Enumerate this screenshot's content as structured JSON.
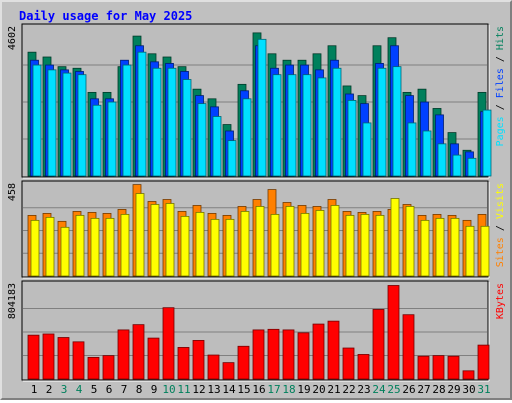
{
  "title": "Daily usage for May 2025",
  "colors": {
    "title": "#0000ff",
    "hits": "#00805c",
    "files": "#0040ff",
    "pages": "#00e0ff",
    "visits": "#ffff00",
    "sites": "#ff8000",
    "kbytes": "#ff0000",
    "panel_bg": "#bdbdbd",
    "frame_bg": "#c0c0c0",
    "weekend_label": "#00805c",
    "weekday_label": "#000000"
  },
  "chart_data": [
    {
      "type": "bar",
      "panel": "traffic",
      "ylabel_parts": [
        "Pages",
        "Files",
        "Hits"
      ],
      "ymax_label": "4602",
      "ylim": [
        0,
        4602
      ],
      "grid": true,
      "categories": [
        "1",
        "2",
        "3",
        "4",
        "5",
        "6",
        "7",
        "8",
        "9",
        "10",
        "11",
        "12",
        "13",
        "14",
        "15",
        "16",
        "17",
        "18",
        "19",
        "20",
        "21",
        "22",
        "23",
        "24",
        "25",
        "26",
        "27",
        "28",
        "29",
        "30",
        "31"
      ],
      "weekend_days": [
        "3",
        "4",
        "10",
        "11",
        "17",
        "18",
        "24",
        "25",
        "31"
      ],
      "series": [
        {
          "name": "Hits",
          "values": [
            3850,
            3700,
            3400,
            3350,
            2600,
            2600,
            3400,
            4350,
            3800,
            3700,
            3400,
            2700,
            2400,
            1600,
            2850,
            4450,
            3800,
            3600,
            3600,
            3800,
            4050,
            2800,
            2500,
            4050,
            4300,
            2600,
            2700,
            2100,
            1350,
            800,
            2600
          ]
        },
        {
          "name": "Files",
          "values": [
            3600,
            3450,
            3300,
            3250,
            2400,
            2400,
            3600,
            4050,
            3550,
            3500,
            3250,
            2500,
            2150,
            1400,
            2650,
            4050,
            3350,
            3450,
            3450,
            3300,
            3600,
            2550,
            2250,
            3500,
            4050,
            2500,
            2300,
            1900,
            1000,
            750,
            2000
          ]
        },
        {
          "name": "Pages",
          "values": [
            3450,
            3300,
            3200,
            3150,
            2200,
            2300,
            3450,
            3850,
            3350,
            3350,
            3000,
            2250,
            1850,
            1100,
            2400,
            4250,
            3150,
            3150,
            3150,
            3050,
            3350,
            2350,
            1650,
            3350,
            3400,
            1650,
            1400,
            1000,
            650,
            550,
            2050
          ]
        }
      ]
    },
    {
      "type": "bar",
      "panel": "visitors",
      "ylabel_parts": [
        "Sites",
        "Visits"
      ],
      "ymax_label": "458",
      "ylim": [
        0,
        458
      ],
      "grid": true,
      "categories": [
        "1",
        "2",
        "3",
        "4",
        "5",
        "6",
        "7",
        "8",
        "9",
        "10",
        "11",
        "12",
        "13",
        "14",
        "15",
        "16",
        "17",
        "18",
        "19",
        "20",
        "21",
        "22",
        "23",
        "24",
        "25",
        "26",
        "27",
        "28",
        "29",
        "30",
        "31"
      ],
      "weekend_days": [
        "3",
        "4",
        "10",
        "11",
        "17",
        "18",
        "24",
        "25",
        "31"
      ],
      "series": [
        {
          "name": "Sites",
          "values": [
            305,
            315,
            275,
            325,
            320,
            315,
            335,
            460,
            375,
            385,
            325,
            355,
            315,
            305,
            350,
            385,
            435,
            370,
            355,
            350,
            385,
            325,
            320,
            325,
            335,
            360,
            305,
            310,
            305,
            280,
            310
          ]
        },
        {
          "name": "Visits",
          "values": [
            280,
            295,
            245,
            305,
            290,
            290,
            310,
            415,
            360,
            365,
            300,
            320,
            285,
            285,
            325,
            350,
            310,
            350,
            315,
            330,
            355,
            305,
            310,
            305,
            390,
            350,
            280,
            290,
            290,
            250,
            250
          ]
        }
      ]
    },
    {
      "type": "bar",
      "panel": "volume",
      "ylabel_parts": [
        "KBytes"
      ],
      "ymax_label": "804183",
      "ylim": [
        0,
        804183
      ],
      "grid": true,
      "categories": [
        "1",
        "2",
        "3",
        "4",
        "5",
        "6",
        "7",
        "8",
        "9",
        "10",
        "11",
        "12",
        "13",
        "14",
        "15",
        "16",
        "17",
        "18",
        "19",
        "20",
        "21",
        "22",
        "23",
        "24",
        "25",
        "26",
        "27",
        "28",
        "29",
        "30",
        "31"
      ],
      "weekend_days": [
        "3",
        "4",
        "10",
        "11",
        "17",
        "18",
        "24",
        "25",
        "31"
      ],
      "series": [
        {
          "name": "KBytes",
          "values": [
            375000,
            385000,
            355000,
            318000,
            185000,
            200000,
            420000,
            465000,
            350000,
            610000,
            270000,
            330000,
            205000,
            140000,
            280000,
            420000,
            425000,
            420000,
            395000,
            470000,
            495000,
            265000,
            210000,
            595000,
            800000,
            550000,
            195000,
            200000,
            195000,
            70000,
            290000
          ]
        }
      ]
    }
  ]
}
